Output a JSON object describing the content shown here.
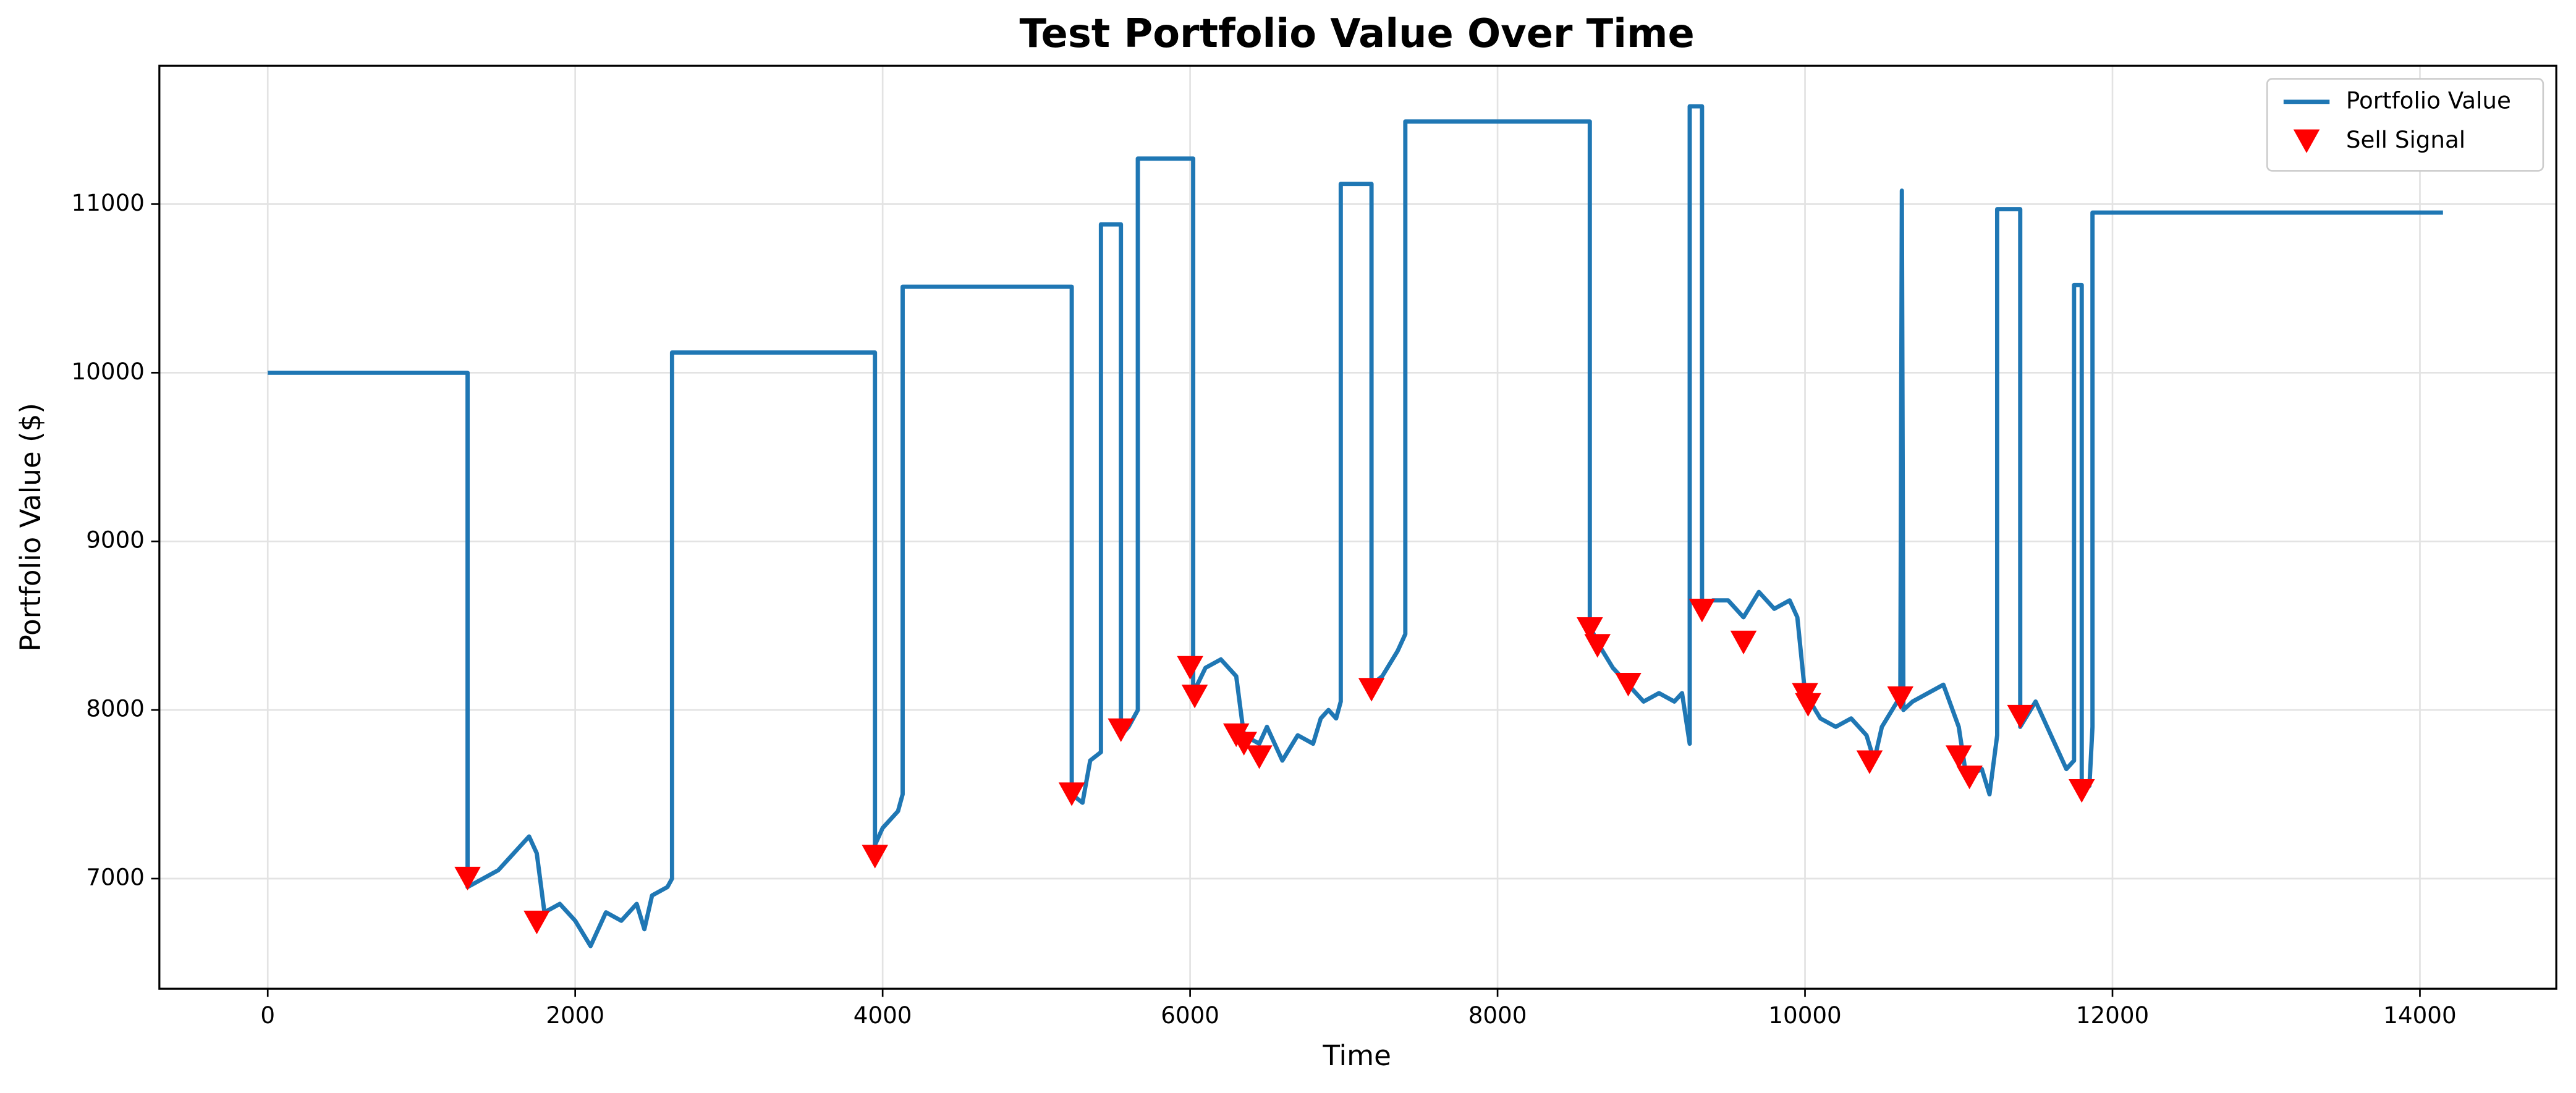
{
  "chart_data": {
    "type": "line",
    "title": "Test Portfolio Value Over Time",
    "x_label": "Time",
    "y_label": "Portfolio Value ($)",
    "xlim": [
      -705,
      14887
    ],
    "ylim": [
      6347,
      11821
    ],
    "xticks": [
      0,
      2000,
      4000,
      6000,
      8000,
      10000,
      12000,
      14000
    ],
    "yticks": [
      7000,
      8000,
      9000,
      10000,
      11000
    ],
    "grid": true,
    "legend": "upper right",
    "series": [
      {
        "name": "Portfolio Value",
        "type": "line",
        "color": "#1f77b4",
        "x": [
          0,
          1300,
          1300,
          1500,
          1650,
          1700,
          1750,
          1800,
          1900,
          2000,
          2100,
          2200,
          2300,
          2400,
          2450,
          2500,
          2600,
          2630,
          2630,
          3950,
          3950,
          4000,
          4100,
          4130,
          4130,
          5230,
          5230,
          5300,
          5350,
          5420,
          5420,
          5550,
          5550,
          5600,
          5660,
          5660,
          6020,
          6020,
          6100,
          6200,
          6300,
          6350,
          6450,
          6500,
          6600,
          6700,
          6800,
          6850,
          6900,
          6950,
          6980,
          6980,
          7180,
          7180,
          7250,
          7350,
          7400,
          7400,
          8600,
          8600,
          8650,
          8750,
          8850,
          8950,
          9050,
          9150,
          9200,
          9250,
          9250,
          9330,
          9330,
          9400,
          9500,
          9600,
          9700,
          9800,
          9900,
          9950,
          10000,
          10100,
          10200,
          10300,
          10400,
          10450,
          10500,
          10600,
          10620,
          10630,
          10640,
          10700,
          10800,
          10900,
          11000,
          11050,
          11150,
          11200,
          11250,
          11250,
          11400,
          11400,
          11500,
          11600,
          11700,
          11750,
          11750,
          11800,
          11800,
          11850,
          11870,
          11870,
          14150
        ],
        "values": [
          10000,
          10000,
          6950,
          7050,
          7200,
          7250,
          7150,
          6800,
          6850,
          6750,
          6600,
          6800,
          6750,
          6850,
          6700,
          6900,
          6950,
          7000,
          10120,
          10120,
          7200,
          7300,
          7400,
          7500,
          10510,
          10510,
          7500,
          7450,
          7700,
          7750,
          10880,
          10880,
          7850,
          7900,
          8000,
          11270,
          11270,
          8100,
          8250,
          8300,
          8200,
          7850,
          7800,
          7900,
          7700,
          7850,
          7800,
          7950,
          8000,
          7950,
          8050,
          11120,
          11120,
          8150,
          8200,
          8350,
          8450,
          11490,
          11490,
          8500,
          8400,
          8250,
          8150,
          8050,
          8100,
          8050,
          8100,
          7800,
          11580,
          11580,
          8600,
          8650,
          8650,
          8550,
          8700,
          8600,
          8650,
          8550,
          8100,
          7950,
          7900,
          7950,
          7850,
          7700,
          7900,
          8050,
          8100,
          11080,
          8000,
          8050,
          8100,
          8150,
          7900,
          7600,
          7650,
          7500,
          7850,
          10970,
          10970,
          7900,
          8050,
          7850,
          7650,
          7700,
          10520,
          10520,
          7550,
          7550,
          7900,
          10950,
          10950
        ]
      },
      {
        "name": "Sell Signal",
        "type": "scatter",
        "color": "#ff0000",
        "x": [
          1300,
          1750,
          3950,
          5230,
          5550,
          6000,
          6030,
          6300,
          6350,
          6450,
          7180,
          8600,
          8650,
          8850,
          9330,
          9600,
          10000,
          10020,
          10420,
          10620,
          11000,
          11070,
          11400,
          11800
        ],
        "values": [
          7000,
          6740,
          7130,
          7500,
          7880,
          8250,
          8080,
          7850,
          7800,
          7720,
          8120,
          8480,
          8380,
          8150,
          8590,
          8400,
          8090,
          8030,
          7690,
          8070,
          7720,
          7600,
          7960,
          7520
        ]
      }
    ]
  }
}
